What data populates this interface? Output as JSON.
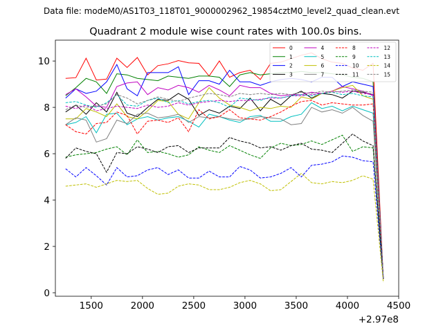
{
  "header": {
    "filename_line": "Data file: modeM0/AS1T03_118T01_9000002962_19854cztM0_level2_quad_clean.evt"
  },
  "chart_data": {
    "type": "line",
    "title": "Quadrant 2 module wise count rates with 100.0s bins.",
    "xlabel": "",
    "ylabel": "",
    "x_offset_label": "+2.97e8",
    "xlim": [
      1150,
      4500
    ],
    "ylim": [
      -0.15,
      10.9
    ],
    "xticks": [
      1500,
      2000,
      2500,
      3000,
      3500,
      4000,
      4500
    ],
    "xtick_labels": [
      "1500",
      "2000",
      "2500",
      "3000",
      "3500",
      "4000",
      "4500"
    ],
    "yticks": [
      0,
      2,
      4,
      6,
      8,
      10
    ],
    "ytick_labels": [
      "0",
      "2",
      "4",
      "6",
      "8",
      "10"
    ],
    "grid": false,
    "legend_position": "top-right",
    "legend_columns": 4,
    "x": [
      1250,
      1350,
      1450,
      1550,
      1650,
      1750,
      1850,
      1950,
      2050,
      2150,
      2250,
      2350,
      2450,
      2550,
      2650,
      2750,
      2850,
      2950,
      3050,
      3150,
      3250,
      3350,
      3450,
      3550,
      3650,
      3750,
      3850,
      3950,
      4050,
      4150,
      4250,
      4350
    ],
    "series": [
      {
        "name": "0",
        "color": "#ff0000",
        "dash": "solid",
        "values": [
          9.25,
          9.28,
          10.12,
          9.18,
          9.22,
          10.12,
          9.72,
          10.15,
          9.4,
          9.8,
          9.88,
          10.02,
          9.92,
          9.9,
          9.35,
          10.0,
          9.3,
          9.5,
          9.6,
          9.2,
          9.9,
          9.95,
          10.1,
          10.25,
          10.35,
          10.1,
          9.95,
          9.9,
          9.7,
          9.6,
          9.9,
          0.6
        ]
      },
      {
        "name": "1",
        "color": "#008000",
        "dash": "solid",
        "values": [
          8.5,
          8.85,
          9.25,
          9.1,
          8.6,
          9.45,
          9.4,
          9.25,
          9.2,
          9.15,
          9.35,
          9.3,
          9.25,
          9.35,
          9.35,
          9.3,
          8.9,
          9.4,
          9.5,
          9.4,
          9.45,
          9.5,
          9.5,
          9.55,
          9.5,
          9.5,
          9.45,
          9.4,
          9.3,
          9.25,
          9.1,
          0.6
        ]
      },
      {
        "name": "2",
        "color": "#0000ff",
        "dash": "solid",
        "values": [
          8.4,
          8.8,
          8.6,
          8.7,
          9.1,
          9.85,
          8.8,
          8.5,
          9.5,
          9.5,
          9.5,
          9.75,
          8.55,
          9.15,
          9.15,
          9.0,
          9.6,
          9.1,
          9.1,
          8.95,
          9.1,
          9.2,
          9.25,
          9.2,
          9.1,
          9.3,
          9.3,
          8.9,
          9.1,
          9.0,
          8.9,
          0.6
        ]
      },
      {
        "name": "3",
        "color": "#000000",
        "dash": "solid",
        "values": [
          7.8,
          8.1,
          7.7,
          8.2,
          7.8,
          8.65,
          7.75,
          7.6,
          8.0,
          8.35,
          8.3,
          8.6,
          8.35,
          7.65,
          7.9,
          7.75,
          8.05,
          7.95,
          8.4,
          7.85,
          8.35,
          8.1,
          8.5,
          8.7,
          8.4,
          8.6,
          8.55,
          8.4,
          8.7,
          8.65,
          8.55,
          0.6
        ]
      },
      {
        "name": "4",
        "color": "#bf00bf",
        "dash": "solid",
        "values": [
          8.55,
          8.8,
          8.45,
          8.05,
          8.0,
          8.9,
          9.05,
          9.1,
          8.55,
          8.85,
          8.75,
          8.95,
          8.85,
          8.65,
          8.95,
          8.75,
          8.5,
          8.95,
          8.85,
          8.85,
          8.6,
          8.5,
          8.55,
          8.55,
          8.65,
          8.6,
          8.7,
          8.9,
          8.8,
          8.7,
          8.5,
          0.6
        ]
      },
      {
        "name": "5",
        "color": "#00bfbf",
        "dash": "solid",
        "values": [
          7.25,
          7.35,
          7.6,
          6.9,
          7.7,
          7.75,
          7.25,
          7.5,
          7.6,
          7.45,
          7.55,
          7.6,
          7.4,
          7.15,
          7.7,
          7.6,
          7.45,
          7.35,
          7.6,
          7.65,
          7.4,
          7.4,
          7.6,
          7.7,
          8.2,
          7.95,
          8.05,
          7.85,
          8.05,
          7.9,
          7.75,
          0.6
        ]
      },
      {
        "name": "6",
        "color": "#bfbf00",
        "dash": "solid",
        "values": [
          7.5,
          7.5,
          7.95,
          7.8,
          7.6,
          8.15,
          7.6,
          7.5,
          7.85,
          8.3,
          8.25,
          7.7,
          7.5,
          8.2,
          8.85,
          8.4,
          8.1,
          8.0,
          7.85,
          8.0,
          7.95,
          8.05,
          8.0,
          8.45,
          8.35,
          8.6,
          8.7,
          8.85,
          8.95,
          8.5,
          8.35,
          0.6
        ]
      },
      {
        "name": "7",
        "color": "#808080",
        "dash": "solid",
        "values": [
          7.25,
          7.55,
          7.45,
          6.5,
          6.65,
          7.45,
          7.3,
          7.7,
          7.75,
          7.55,
          7.6,
          7.7,
          7.35,
          7.6,
          7.55,
          7.6,
          7.5,
          7.45,
          7.5,
          7.6,
          7.55,
          7.5,
          7.25,
          7.3,
          8.0,
          7.8,
          7.9,
          7.75,
          8.0,
          7.65,
          7.4,
          0.6
        ]
      },
      {
        "name": "8",
        "color": "#ff0000",
        "dash": "dashed",
        "values": [
          7.25,
          6.95,
          6.85,
          7.3,
          7.35,
          7.8,
          7.65,
          6.85,
          7.4,
          7.45,
          7.35,
          7.55,
          6.95,
          7.9,
          7.5,
          7.6,
          7.9,
          7.55,
          7.5,
          7.45,
          7.6,
          7.8,
          8.05,
          8.25,
          8.3,
          8.1,
          8.2,
          8.15,
          8.1,
          8.1,
          8.15,
          0.6
        ]
      },
      {
        "name": "9",
        "color": "#008000",
        "dash": "dashed",
        "values": [
          5.85,
          5.95,
          6.0,
          6.05,
          6.2,
          6.3,
          5.95,
          6.6,
          6.05,
          6.1,
          6.0,
          5.85,
          5.95,
          6.3,
          6.15,
          6.05,
          6.35,
          6.15,
          5.95,
          5.8,
          6.25,
          6.45,
          6.35,
          6.4,
          6.55,
          6.4,
          6.6,
          6.8,
          6.1,
          6.3,
          6.25,
          0.6
        ]
      },
      {
        "name": "10",
        "color": "#0000ff",
        "dash": "dashed",
        "values": [
          5.35,
          5.0,
          5.4,
          5.05,
          4.65,
          5.4,
          5.0,
          5.05,
          5.3,
          5.4,
          5.1,
          5.3,
          4.95,
          4.95,
          5.25,
          5.0,
          5.0,
          5.45,
          5.3,
          4.95,
          5.0,
          5.15,
          5.4,
          5.0,
          5.5,
          5.55,
          5.65,
          5.9,
          5.85,
          5.7,
          5.65,
          0.6
        ]
      },
      {
        "name": "11",
        "color": "#000000",
        "dash": "dashed",
        "values": [
          5.8,
          6.25,
          6.1,
          6.0,
          5.2,
          6.05,
          6.0,
          6.3,
          6.2,
          6.05,
          6.3,
          6.35,
          6.05,
          6.25,
          6.25,
          6.25,
          6.7,
          6.55,
          6.45,
          6.25,
          6.3,
          6.15,
          6.35,
          6.45,
          6.2,
          6.15,
          6.05,
          6.45,
          6.85,
          6.55,
          6.35,
          0.6
        ]
      },
      {
        "name": "12",
        "color": "#bf00bf",
        "dash": "dashed",
        "values": [
          8.05,
          7.95,
          8.1,
          7.85,
          7.95,
          8.05,
          8.0,
          7.95,
          8.1,
          8.0,
          8.05,
          8.2,
          8.1,
          8.2,
          8.25,
          8.3,
          8.25,
          8.3,
          8.3,
          8.35,
          8.4,
          8.4,
          8.5,
          8.5,
          8.55,
          8.6,
          8.7,
          8.65,
          8.7,
          8.6,
          8.55,
          0.6
        ]
      },
      {
        "name": "13",
        "color": "#00bfbf",
        "dash": "dashed",
        "values": [
          8.2,
          8.25,
          8.1,
          8.0,
          8.2,
          8.55,
          8.1,
          8.05,
          8.3,
          8.4,
          8.2,
          8.3,
          8.15,
          8.25,
          8.3,
          8.2,
          8.0,
          8.4,
          8.35,
          8.3,
          8.45,
          8.4,
          8.5,
          8.55,
          8.5,
          8.6,
          8.65,
          8.55,
          8.6,
          8.5,
          8.45,
          0.6
        ]
      },
      {
        "name": "14",
        "color": "#bfbf00",
        "dash": "dashed",
        "values": [
          4.6,
          4.65,
          4.7,
          4.55,
          4.7,
          4.85,
          4.8,
          4.85,
          4.5,
          4.25,
          4.3,
          4.6,
          4.7,
          4.65,
          4.45,
          4.45,
          4.55,
          4.75,
          4.85,
          4.7,
          4.4,
          4.45,
          4.8,
          5.15,
          4.75,
          4.7,
          4.8,
          4.75,
          4.85,
          5.05,
          4.9,
          0.45
        ]
      },
      {
        "name": "15",
        "color": "#808080",
        "dash": "dashed",
        "values": [
          7.9,
          8.1,
          8.0,
          8.05,
          8.15,
          8.55,
          8.4,
          8.15,
          8.3,
          8.45,
          8.35,
          8.25,
          8.4,
          8.5,
          8.6,
          8.55,
          8.45,
          8.6,
          8.55,
          8.6,
          8.55,
          8.6,
          8.55,
          8.65,
          8.6,
          8.7,
          8.65,
          8.7,
          8.75,
          8.7,
          8.65,
          0.6
        ]
      }
    ]
  }
}
